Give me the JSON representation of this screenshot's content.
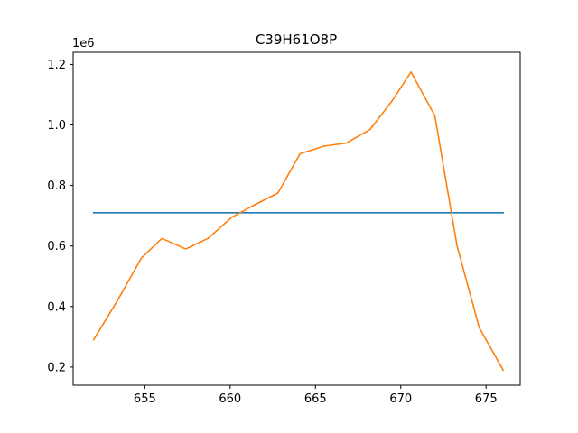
{
  "chart_data": {
    "type": "line",
    "title": "C39H61O8P",
    "xlabel": "",
    "ylabel": "",
    "y_offset_text": "1e6",
    "xlim": [
      650.8,
      677.0
    ],
    "ylim": [
      0.14,
      1.24
    ],
    "x_ticks": [
      655,
      660,
      665,
      670,
      675
    ],
    "y_ticks": [
      0.2,
      0.4,
      0.6,
      0.8,
      1.0,
      1.2
    ],
    "grid": false,
    "colors": {
      "flat_series": "#1f77b4",
      "profile_series": "#ff7f0e"
    },
    "series": [
      {
        "x": [
          652.0,
          676.0
        ],
        "y": [
          0.71,
          0.71
        ]
      },
      {
        "x": [
          652.0,
          653.4,
          654.8,
          656.0,
          657.4,
          658.7,
          660.1,
          661.4,
          662.8,
          664.1,
          665.5,
          666.8,
          668.2,
          669.5,
          670.6,
          672.0,
          673.3,
          674.6,
          676.0
        ],
        "y": [
          0.29,
          0.42,
          0.56,
          0.625,
          0.59,
          0.625,
          0.695,
          0.735,
          0.775,
          0.905,
          0.93,
          0.94,
          0.985,
          1.08,
          1.175,
          1.03,
          0.6,
          0.33,
          0.19
        ]
      }
    ]
  }
}
